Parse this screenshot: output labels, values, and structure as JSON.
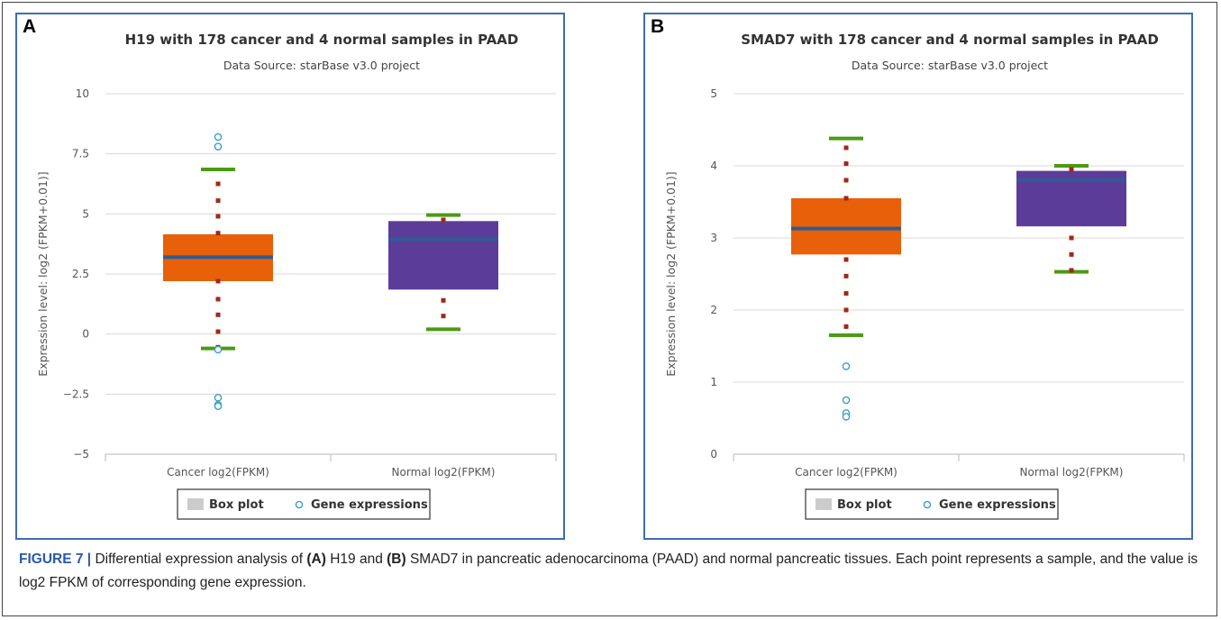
{
  "caption": {
    "label": "FIGURE 7 |",
    "seg1": " Differential expression analysis of ",
    "ref_a": "(A)",
    "seg2": " H19 and ",
    "ref_b": "(B)",
    "seg3": " SMAD7 in pancreatic adenocarcinoma (PAAD) and normal pancreatic tissues. Each point represents a sample, and the value is log2 FPKM of corresponding gene expression."
  },
  "colors": {
    "cancer_box": "#e8600a",
    "normal_box": "#5c3c99",
    "median": "#2e5b95",
    "whisker": "#4c9a14",
    "sample_dot": "#a02818",
    "outlier": "#3aa0c8",
    "panel_border": "#3f6db3",
    "grid": "#d9d9d9"
  },
  "chart_data": [
    {
      "type": "box",
      "panel_letter": "A",
      "title": "H19 with 178 cancer and 4 normal samples in PAAD",
      "subtitle": "Data Source: starBase v3.0 project",
      "ylabel": "Expression level: log2 (FPKM+0.01)]",
      "ylim": [
        -5,
        10
      ],
      "yticks": [
        10,
        7.5,
        5,
        2.5,
        0,
        -2.5,
        -5
      ],
      "ytick_labels": [
        "10",
        "7.5",
        "5",
        "2.5",
        "0",
        "−2.5",
        "−5"
      ],
      "categories": [
        "Cancer log2(FPKM)",
        "Normal log2(FPKM)"
      ],
      "boxes": [
        {
          "name": "Cancer log2(FPKM)",
          "low": -0.6,
          "q1": 2.2,
          "median": 3.2,
          "q3": 4.15,
          "high": 6.85,
          "points": [
            6.25,
            5.55,
            4.9,
            4.2,
            2.2,
            1.45,
            0.8,
            0.1,
            -0.55
          ]
        },
        {
          "name": "Normal log2(FPKM)",
          "low": 0.2,
          "q1": 1.85,
          "median": 3.95,
          "q3": 4.7,
          "high": 4.95,
          "points": [
            4.75,
            1.4,
            0.75
          ]
        }
      ],
      "outliers": [
        {
          "category": 0,
          "values": [
            8.2,
            7.8,
            -0.65,
            -2.65,
            -2.95,
            -3.0
          ]
        }
      ],
      "legend": [
        "Box plot",
        "Gene expressions"
      ],
      "legend_position": "bottom"
    },
    {
      "type": "box",
      "panel_letter": "B",
      "title": "SMAD7 with 178 cancer and 4 normal samples in PAAD",
      "subtitle": "Data Source: starBase v3.0 project",
      "ylabel": "Expression level: log2 (FPKM+0.01)]",
      "ylim": [
        0,
        5
      ],
      "yticks": [
        5,
        4,
        3,
        2,
        1,
        0
      ],
      "ytick_labels": [
        "5",
        "4",
        "3",
        "2",
        "1",
        "0"
      ],
      "categories": [
        "Cancer log2(FPKM)",
        "Normal log2(FPKM)"
      ],
      "boxes": [
        {
          "name": "Cancer log2(FPKM)",
          "low": 1.65,
          "q1": 2.77,
          "median": 3.13,
          "q3": 3.55,
          "high": 4.38,
          "points": [
            4.25,
            4.03,
            3.8,
            3.55,
            2.7,
            2.47,
            2.23,
            2.0,
            1.77
          ]
        },
        {
          "name": "Normal log2(FPKM)",
          "low": 2.53,
          "q1": 3.16,
          "median": 3.8,
          "q3": 3.93,
          "high": 4.0,
          "points": [
            3.95,
            3.0,
            2.77,
            2.55
          ]
        }
      ],
      "outliers": [
        {
          "category": 0,
          "values": [
            1.22,
            0.75,
            0.57,
            0.52
          ]
        }
      ],
      "legend": [
        "Box plot",
        "Gene expressions"
      ],
      "legend_position": "bottom"
    }
  ]
}
